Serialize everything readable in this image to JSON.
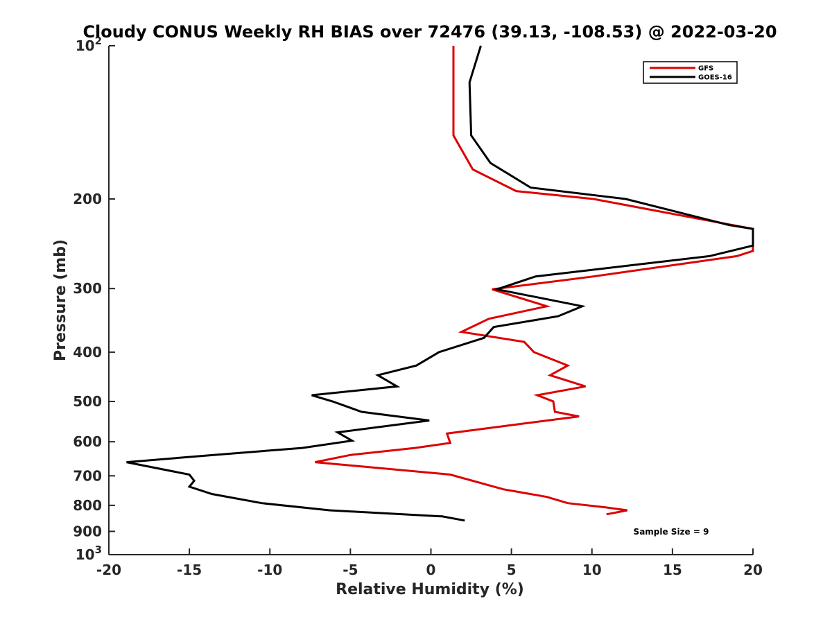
{
  "chart_data": {
    "type": "line",
    "title": "Cloudy CONUS Weekly RH BIAS over 72476 (39.13, -108.53) @ 2022-03-20",
    "xlabel": "Relative Humidity (%)",
    "ylabel": "Pressure (mb)",
    "xlim": [
      -20,
      20
    ],
    "ylim": [
      100,
      1000
    ],
    "y_scale": "log",
    "y_reversed": true,
    "grid": false,
    "legend_position": "top-right",
    "x_ticks": [
      "-20",
      "-15",
      "-10",
      "-5",
      "0",
      "5",
      "10",
      "15",
      "20"
    ],
    "y_ticks": [
      {
        "value": 100,
        "base": "10",
        "exp": "2"
      },
      {
        "value": 200,
        "label": "200"
      },
      {
        "value": 300,
        "label": "300"
      },
      {
        "value": 400,
        "label": "400"
      },
      {
        "value": 500,
        "label": "500"
      },
      {
        "value": 600,
        "label": "600"
      },
      {
        "value": 700,
        "label": "700"
      },
      {
        "value": 800,
        "label": "800"
      },
      {
        "value": 900,
        "label": "900"
      },
      {
        "value": 1000,
        "base": "10",
        "exp": "3"
      }
    ],
    "series": [
      {
        "name": "GFS",
        "color": "#dd0000",
        "points": [
          [
            1.4,
            100
          ],
          [
            1.4,
            125
          ],
          [
            1.4,
            150
          ],
          [
            2.6,
            175
          ],
          [
            5.3,
            193
          ],
          [
            10.1,
            200
          ],
          [
            18.7,
            225
          ],
          [
            20.0,
            229
          ],
          [
            20.0,
            253
          ],
          [
            19.0,
            259
          ],
          [
            10.1,
            284
          ],
          [
            3.8,
            301
          ],
          [
            7.2,
            325
          ],
          [
            3.6,
            344
          ],
          [
            1.9,
            365
          ],
          [
            5.8,
            382
          ],
          [
            6.4,
            400
          ],
          [
            8.5,
            425
          ],
          [
            7.4,
            444
          ],
          [
            9.6,
            467
          ],
          [
            6.6,
            486
          ],
          [
            7.6,
            500
          ],
          [
            7.7,
            524
          ],
          [
            9.2,
            535
          ],
          [
            5.1,
            556
          ],
          [
            1.0,
            578
          ],
          [
            1.2,
            603
          ],
          [
            -1.0,
            617
          ],
          [
            -5.0,
            637
          ],
          [
            -7.2,
            658
          ],
          [
            1.2,
            696
          ],
          [
            4.5,
            744
          ],
          [
            7.2,
            770
          ],
          [
            8.5,
            792
          ],
          [
            10.8,
            807
          ],
          [
            12.2,
            818
          ],
          [
            10.9,
            833
          ]
        ]
      },
      {
        "name": "GOES-16",
        "color": "#000000",
        "points": [
          [
            3.1,
            100
          ],
          [
            2.4,
            118
          ],
          [
            2.5,
            150
          ],
          [
            3.7,
            170
          ],
          [
            6.2,
            190
          ],
          [
            12.1,
            200
          ],
          [
            18.5,
            225
          ],
          [
            20.0,
            229
          ],
          [
            20.0,
            247
          ],
          [
            17.3,
            259
          ],
          [
            6.5,
            284
          ],
          [
            4.1,
            301
          ],
          [
            9.4,
            325
          ],
          [
            7.9,
            340
          ],
          [
            3.9,
            357
          ],
          [
            3.3,
            375
          ],
          [
            0.5,
            400
          ],
          [
            -0.9,
            425
          ],
          [
            -3.3,
            444
          ],
          [
            -2.1,
            467
          ],
          [
            -7.4,
            486
          ],
          [
            -6.1,
            500
          ],
          [
            -4.3,
            524
          ],
          [
            -0.1,
            545
          ],
          [
            -5.8,
            575
          ],
          [
            -4.9,
            597
          ],
          [
            -8.0,
            617
          ],
          [
            -13.5,
            637
          ],
          [
            -18.9,
            658
          ],
          [
            -15.0,
            696
          ],
          [
            -14.7,
            716
          ],
          [
            -15.0,
            735
          ],
          [
            -13.6,
            760
          ],
          [
            -10.5,
            792
          ],
          [
            -6.3,
            818
          ],
          [
            0.7,
            841
          ],
          [
            2.1,
            857
          ]
        ]
      }
    ],
    "annotations": [
      "Sample Size = 9"
    ]
  }
}
